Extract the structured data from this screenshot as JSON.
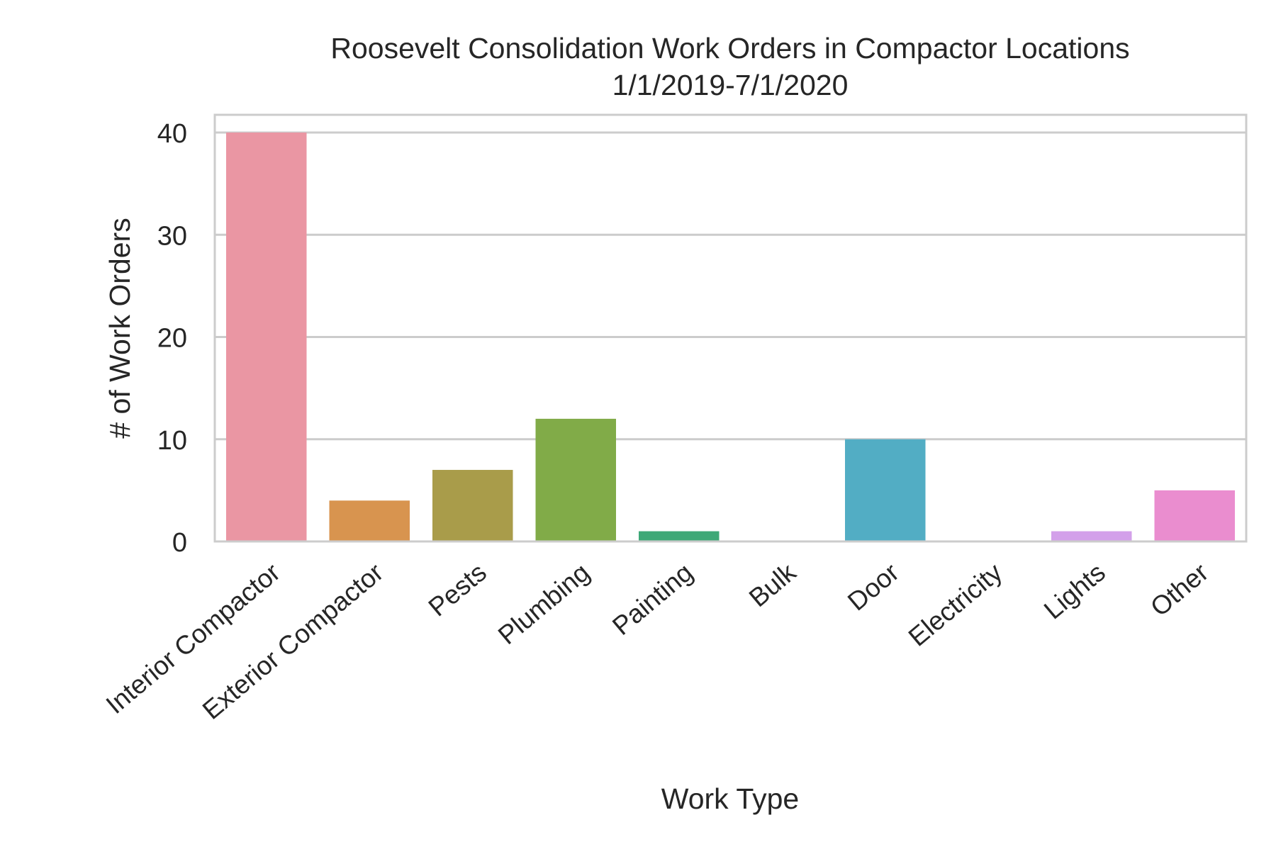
{
  "chart_data": {
    "type": "bar",
    "title_line1": "Roosevelt Consolidation Work Orders in Compactor Locations",
    "title_line2": "1/1/2019-7/1/2020",
    "xlabel": "Work Type",
    "ylabel": "# of Work Orders",
    "categories": [
      "Interior Compactor",
      "Exterior Compactor",
      "Pests",
      "Plumbing",
      "Painting",
      "Bulk",
      "Door",
      "Electricity",
      "Lights",
      "Other"
    ],
    "values": [
      40,
      4,
      7,
      12,
      1,
      0,
      10,
      0,
      1,
      5
    ],
    "colors": [
      "#ea96a3",
      "#d8944f",
      "#a99c4a",
      "#81ab48",
      "#3ea877",
      "#44aa99",
      "#52adc4",
      "#8fa3e8",
      "#d3a0ea",
      "#ea8dcf"
    ],
    "yticks": [
      0,
      10,
      20,
      30,
      40
    ],
    "ylim": [
      0,
      42
    ],
    "grid": true,
    "legend": "none"
  }
}
